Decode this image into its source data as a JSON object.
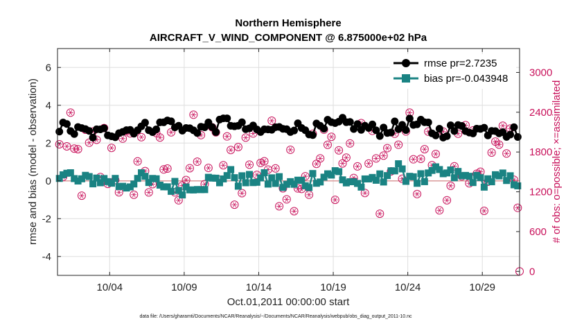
{
  "chart_data": {
    "type": "line",
    "title": "Northern Hemisphere",
    "subtitle": "AIRCRAFT_V_WIND_COMPONENT @ 6.875000e+02 hPa",
    "xlabel": "Oct.01,2011 00:00:00 start",
    "ylabel": "rmse and bias (model - observation)",
    "y2label": "# of obs: o=possible; ×=assimilated",
    "footnote": "data file: /Users/gharamti/Documents/NCAR/Reanalysis/~/Documents/NCAR/Reanalysis/webpub/obs_diag_output_2011-10.nc",
    "xlim": [
      0.5,
      31.5
    ],
    "ylim": [
      -5,
      7
    ],
    "y2lim": [
      -60,
      3360
    ],
    "xticks": [
      {
        "v": 4,
        "label": "10/04"
      },
      {
        "v": 9,
        "label": "10/09"
      },
      {
        "v": 14,
        "label": "10/14"
      },
      {
        "v": 19,
        "label": "10/19"
      },
      {
        "v": 24,
        "label": "10/24"
      },
      {
        "v": 29,
        "label": "10/29"
      }
    ],
    "yticks": [
      {
        "v": -4,
        "label": "-4"
      },
      {
        "v": -2,
        "label": "-2"
      },
      {
        "v": 0,
        "label": "0"
      },
      {
        "v": 2,
        "label": "2"
      },
      {
        "v": 4,
        "label": "4"
      },
      {
        "v": 6,
        "label": "6"
      }
    ],
    "y2ticks": [
      {
        "v": 0,
        "label": "0"
      },
      {
        "v": 600,
        "label": "600"
      },
      {
        "v": 1200,
        "label": "1200"
      },
      {
        "v": 1800,
        "label": "1800"
      },
      {
        "v": 2400,
        "label": "2400"
      },
      {
        "v": 3000,
        "label": "3000"
      }
    ],
    "grid": true,
    "legend_position": "top-right",
    "series": [
      {
        "name": "rmse",
        "legend": "rmse pr=2.7235",
        "color": "#000000",
        "axis": "left",
        "base": [
          2.8,
          2.6,
          2.5,
          2.6,
          2.7,
          2.8,
          2.9,
          3.1,
          2.7,
          2.8,
          2.9,
          3.1,
          2.8,
          2.6,
          2.7,
          2.9,
          2.8,
          2.7,
          2.9,
          3.0,
          2.8,
          2.7,
          2.8,
          3.0,
          2.9,
          2.6,
          2.7,
          2.8,
          2.7,
          2.8,
          2.6
        ],
        "amp": 0.35
      },
      {
        "name": "bias",
        "legend": "bias pr=-0.043948",
        "color": "#1a8383",
        "axis": "left",
        "base": [
          0.3,
          0.0,
          0.1,
          0.0,
          -0.2,
          0.1,
          -0.1,
          -0.3,
          -0.4,
          -0.2,
          0.0,
          0.3,
          0.0,
          0.1,
          0.0,
          -0.2,
          -0.1,
          0.2,
          0.4,
          0.0,
          -0.2,
          0.1,
          0.6,
          0.3,
          0.1,
          0.4,
          0.3,
          0.2,
          0.0,
          0.1,
          0.0
        ],
        "amp": 0.35
      },
      {
        "name": "possible",
        "color": "#c8105a",
        "axis": "right",
        "base": [
          1700,
          1600,
          1650,
          1750,
          1600,
          1700,
          1500,
          1650,
          1550,
          1700,
          1650,
          1550,
          1750,
          1800,
          1650,
          1600,
          1550,
          1650,
          1750,
          1700,
          1600,
          1550,
          1650,
          1700,
          1600,
          1500,
          1650,
          1700,
          1600,
          1500,
          1650
        ],
        "amp": 700
      }
    ]
  }
}
